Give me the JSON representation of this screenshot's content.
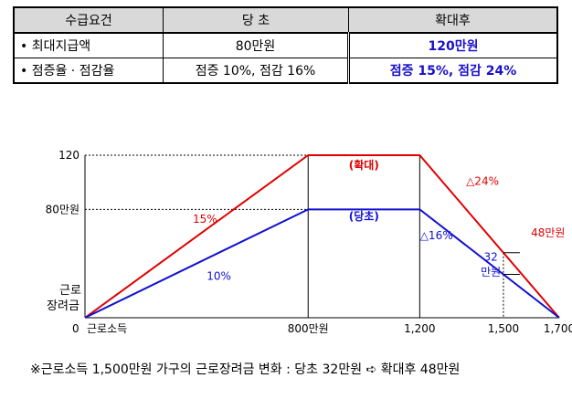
{
  "table": {
    "headers": [
      "수급요건",
      "당  초",
      "확대후"
    ],
    "rows": [
      {
        "label": "• 최대지급액",
        "before": "80만원",
        "after": "120만원"
      },
      {
        "label": "• 점증율 · 점감율",
        "before": "점증 10%, 점감 16%",
        "after": "점증 15%, 점감 24%"
      }
    ]
  },
  "chart_data": {
    "type": "line",
    "series": [
      {
        "name": "(확대)",
        "color": "#e00000",
        "points": [
          [
            0,
            0
          ],
          [
            800,
            120
          ],
          [
            1200,
            120
          ],
          [
            1700,
            0
          ]
        ]
      },
      {
        "name": "(당초)",
        "color": "#1010d0",
        "points": [
          [
            0,
            0
          ],
          [
            800,
            80
          ],
          [
            1200,
            80
          ],
          [
            1700,
            0
          ]
        ]
      }
    ],
    "x_ticks": [
      {
        "value": 0,
        "label": "0"
      },
      {
        "value": 800,
        "label": "800만원"
      },
      {
        "value": 1200,
        "label": "1,200"
      },
      {
        "value": 1500,
        "label": "1,500"
      },
      {
        "value": 1700,
        "label": "1,700"
      }
    ],
    "y_ticks": [
      {
        "value": 120,
        "label": "120"
      },
      {
        "value": 80,
        "label": "80만원"
      }
    ],
    "xlabel": "근로소득",
    "ylabel": "근로장려금",
    "xlim": [
      0,
      1700
    ],
    "ylim": [
      0,
      120
    ],
    "annotations": [
      {
        "text": "15%",
        "x": 430,
        "y": 70,
        "color": "#e00000"
      },
      {
        "text": "10%",
        "x": 480,
        "y": 28,
        "color": "#1010d0"
      },
      {
        "text": "(확대)",
        "x": 1000,
        "y": 110,
        "color": "#e00000"
      },
      {
        "text": "(당초)",
        "x": 1000,
        "y": 72,
        "color": "#1010d0"
      },
      {
        "text": "△24%",
        "x": 1425,
        "y": 98,
        "color": "#e00000"
      },
      {
        "text": "△16%",
        "x": 1260,
        "y": 58,
        "color": "#1010d0"
      },
      {
        "text": "48만원",
        "x": 1660,
        "y": 60,
        "color": "#e00000"
      },
      {
        "text": "32",
        "x": 1455,
        "y": 42,
        "color": "#1010d0"
      },
      {
        "text": "만원",
        "x": 1455,
        "y": 31,
        "color": "#1010d0"
      }
    ],
    "markers": [
      {
        "x": 1500,
        "y": 48
      },
      {
        "x": 1500,
        "y": 32
      }
    ]
  },
  "note": "※근로소득 1,500만원 가구의 근로장려금 변화 : 당초 32만원 ➪ 확대후 48만원"
}
